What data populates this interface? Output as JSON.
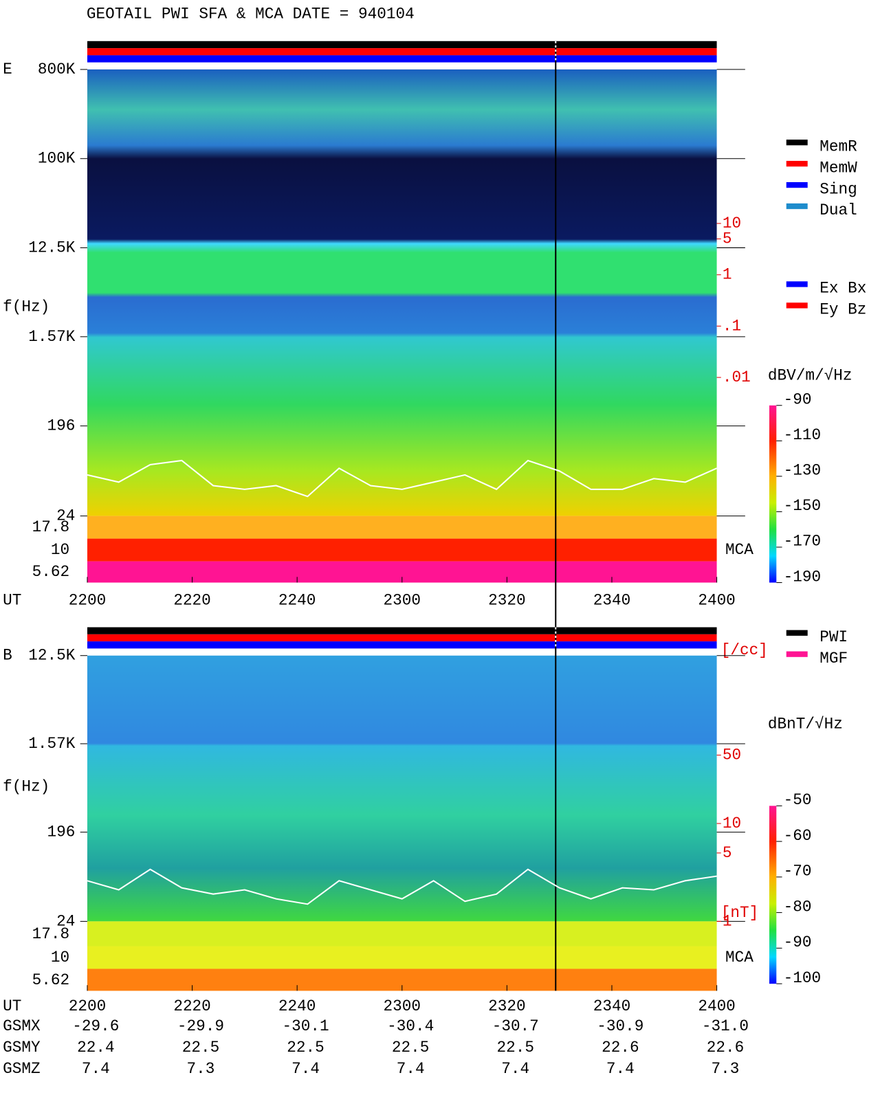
{
  "title": "GEOTAIL  PWI SFA & MCA   DATE = 940104",
  "chart_data": [
    {
      "type": "spectrogram",
      "panel_label": "E",
      "y_label": "f(Hz)",
      "x_label": "UT",
      "categories": [
        "2200",
        "2220",
        "2240",
        "2300",
        "2320",
        "2340",
        "2400"
      ],
      "log_y": true,
      "ylim": [
        24,
        800000
      ],
      "yticks": [
        {
          "value": 800000,
          "label": "800K"
        },
        {
          "value": 100000,
          "label": "100K"
        },
        {
          "value": 12500,
          "label": "12.5K"
        },
        {
          "value": 1570,
          "label": "1.57K"
        },
        196,
        24
      ],
      "mca_label": "MCA",
      "mca_ticks": [
        17.8,
        10,
        5.62
      ],
      "y2_label": "[/cc]",
      "y2lim": [
        2e-05,
        10000
      ],
      "y2ticks": [
        10,
        5,
        1,
        {
          "value": 0.1,
          "label": ".1"
        },
        {
          "value": 0.01,
          "label": ".01"
        }
      ],
      "trace_color": "#ffffff",
      "trace": [
        0.000126,
        9.1e-05,
        0.0002,
        0.00024,
        7.8e-05,
        6.6e-05,
        7.8e-05,
        4.8e-05,
        0.00017,
        7.8e-05,
        6.6e-05,
        9.1e-05,
        0.000126,
        6.6e-05,
        0.00024,
        0.00015,
        6.6e-05,
        6.6e-05,
        0.000107,
        9.1e-05,
        0.00017
      ],
      "colorbar": {
        "label": "dBV/m/√Hz",
        "lim": [
          -190,
          -90
        ],
        "ticks": [
          -90,
          -110,
          -130,
          -150,
          -170,
          -190
        ]
      },
      "legend": [
        {
          "name": "MemR",
          "color": "#000000"
        },
        {
          "name": "MemW",
          "color": "#ff0000"
        },
        {
          "name": "Sing",
          "color": "#0000ff"
        },
        {
          "name": "Dual",
          "color": "#1e8ccc"
        }
      ],
      "legend2": [
        {
          "name": "Ex Bx",
          "color": "#0000ff"
        },
        {
          "name": "Ey Bz",
          "color": "#ff0000"
        }
      ]
    },
    {
      "type": "spectrogram",
      "panel_label": "B",
      "y_label": "f(Hz)",
      "x_label": "UT",
      "categories": [
        "2200",
        "2220",
        "2240",
        "2300",
        "2320",
        "2340",
        "2400"
      ],
      "log_y": true,
      "ylim": [
        24,
        12500
      ],
      "yticks": [
        {
          "value": 12500,
          "label": "12.5K"
        },
        {
          "value": 1570,
          "label": "1.57K"
        },
        196,
        24
      ],
      "mca_label": "MCA",
      "mca_ticks": [
        17.8,
        10,
        5.62
      ],
      "y2_label": "[nT]",
      "y2lim": [
        1,
        520
      ],
      "y2ticks": [
        50,
        10,
        5,
        1
      ],
      "trace_color": "#ffffff",
      "trace": [
        2.6,
        2.1,
        3.4,
        2.2,
        1.9,
        2.1,
        1.7,
        1.5,
        2.6,
        2.1,
        1.7,
        2.6,
        1.6,
        1.9,
        3.4,
        2.2,
        1.7,
        2.2,
        2.1,
        2.6,
        2.9
      ],
      "colorbar": {
        "label": "dBnT/√Hz",
        "lim": [
          -100,
          -50
        ],
        "ticks": [
          -50,
          -60,
          -70,
          -80,
          -90,
          -100
        ]
      },
      "legend": [
        {
          "name": "PWI",
          "color": "#000000"
        },
        {
          "name": "MGF",
          "color": "#ff1493"
        }
      ]
    }
  ],
  "orbit": {
    "row_labels": [
      "GSMX",
      "GSMY",
      "GSMZ"
    ],
    "rows": [
      [
        "-29.6",
        "-29.9",
        "-30.1",
        "-30.4",
        "-30.7",
        "-30.9",
        "-31.0"
      ],
      [
        "22.4",
        "22.5",
        "22.5",
        "22.5",
        "22.5",
        "22.6",
        "22.6"
      ],
      [
        "7.4",
        "7.3",
        "7.4",
        "7.4",
        "7.4",
        "7.4",
        "7.3"
      ]
    ]
  }
}
